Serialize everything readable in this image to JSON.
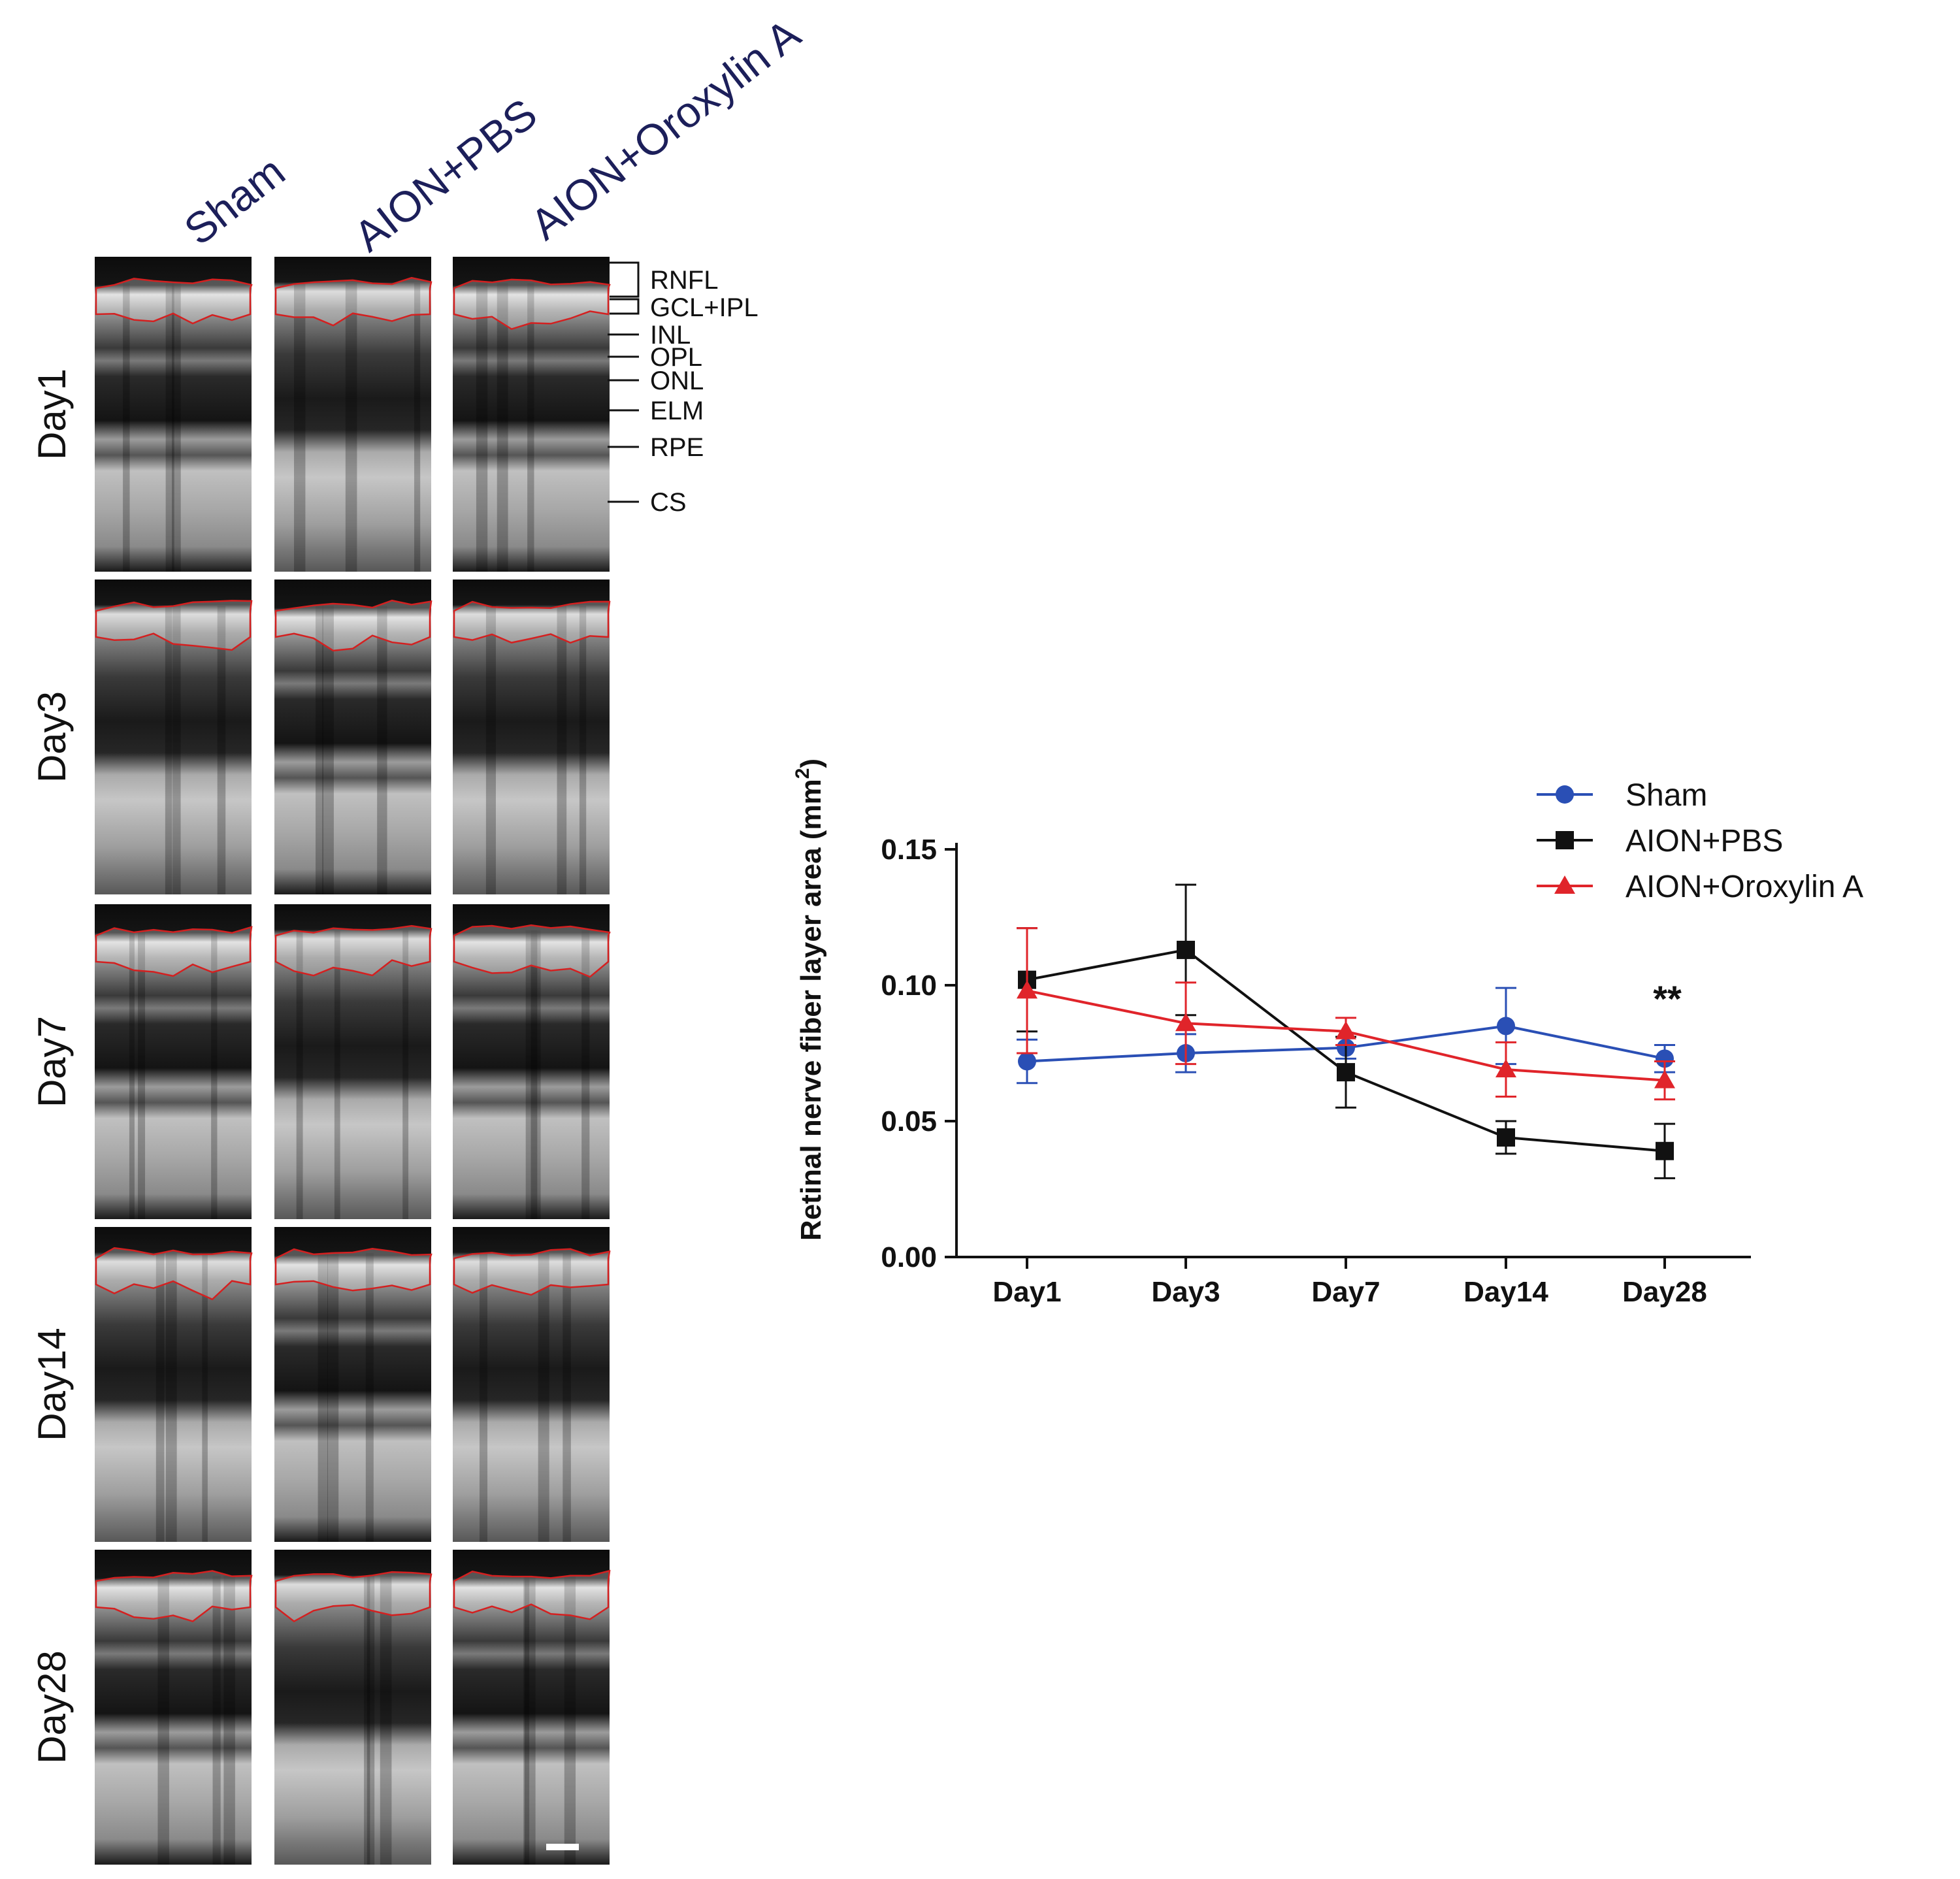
{
  "panel_a": {
    "columns": [
      "Sham",
      "AION+PBS",
      "AION+Oroxylin A"
    ],
    "rows": [
      "Day1",
      "Day3",
      "Day7",
      "Day14",
      "Day28"
    ],
    "layers": [
      "RNFL",
      "GCL+IPL",
      "INL",
      "OPL",
      "ONL",
      "ELM",
      "RPE",
      "CS"
    ]
  },
  "chart_data": {
    "type": "line",
    "categories": [
      "Day1",
      "Day3",
      "Day7",
      "Day14",
      "Day28"
    ],
    "ylabel_main": "Retinal nerve fiber layer area (mm",
    "ylabel_sup": "2",
    "ylabel_close": ")",
    "ylim": [
      0,
      0.15
    ],
    "yticks": [
      "0.00",
      "0.05",
      "0.10",
      "0.15"
    ],
    "annotation": "**",
    "legend_position": "top-right",
    "series": [
      {
        "name": "Sham",
        "color": "#2a4fb5",
        "marker": "circle",
        "values": [
          0.072,
          0.075,
          0.077,
          0.085,
          0.073
        ],
        "errors": [
          0.008,
          0.007,
          0.004,
          0.014,
          0.005
        ]
      },
      {
        "name": "AION+PBS",
        "color": "#111111",
        "marker": "square",
        "values": [
          0.102,
          0.113,
          0.068,
          0.044,
          0.039
        ],
        "errors": [
          0.019,
          0.024,
          0.013,
          0.006,
          0.01
        ]
      },
      {
        "name": "AION+Oroxylin A",
        "color": "#e0242a",
        "marker": "triangle",
        "values": [
          0.098,
          0.086,
          0.083,
          0.069,
          0.065
        ],
        "errors": [
          0.023,
          0.015,
          0.005,
          0.01,
          0.007
        ]
      }
    ]
  }
}
